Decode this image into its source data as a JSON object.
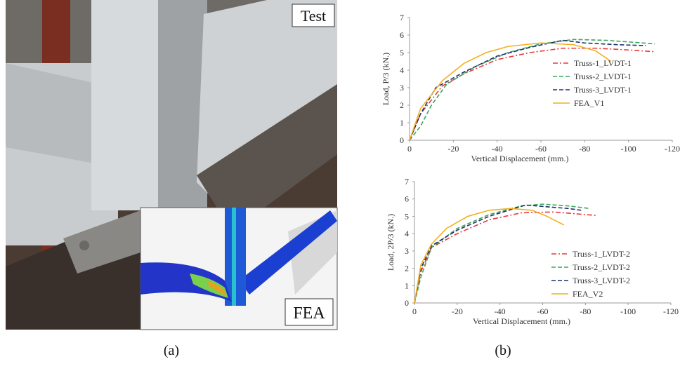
{
  "panel_a": {
    "labels": [
      "Test",
      "FEA"
    ],
    "caption": "(a)"
  },
  "panel_b": {
    "caption": "(b)"
  },
  "chart_data": [
    {
      "type": "line",
      "xlabel": "Vertical Displacement (mm.)",
      "ylabel": "Load, P/3 (kN.)",
      "xlim": [
        0,
        -120
      ],
      "xticks": [
        0,
        -20,
        -40,
        -60,
        -80,
        -100,
        -120
      ],
      "ylim": [
        0,
        7
      ],
      "yticks": [
        0,
        1,
        2,
        3,
        4,
        5,
        6,
        7
      ],
      "legend": "center right",
      "series": [
        {
          "name": "Truss-1_LVDT-1",
          "color": "#e8393a",
          "style": "dashdot",
          "x": [
            0,
            -5,
            -15,
            -25,
            -40,
            -55,
            -70,
            -85,
            -100,
            -112
          ],
          "values": [
            0,
            1.5,
            3.1,
            3.8,
            4.6,
            5.0,
            5.25,
            5.25,
            5.15,
            5.05
          ]
        },
        {
          "name": "Truss-2_LVDT-1",
          "color": "#3aa85a",
          "style": "dashed",
          "x": [
            0,
            -5,
            -10,
            -17,
            -30,
            -45,
            -60,
            -75,
            -90,
            -112
          ],
          "values": [
            0,
            0.8,
            2.0,
            3.2,
            4.2,
            5.0,
            5.5,
            5.75,
            5.7,
            5.5
          ]
        },
        {
          "name": "Truss-3_LVDT-1",
          "color": "#1f2f6e",
          "style": "dashed",
          "x": [
            0,
            -5,
            -12,
            -25,
            -40,
            -55,
            -70,
            -80,
            -95,
            -108
          ],
          "values": [
            0,
            1.5,
            3.0,
            3.9,
            4.8,
            5.3,
            5.7,
            5.55,
            5.45,
            5.4
          ]
        },
        {
          "name": "FEA_V1",
          "color": "#f2b01e",
          "style": "solid",
          "x": [
            0,
            -5,
            -15,
            -25,
            -35,
            -45,
            -60,
            -75,
            -85,
            -92
          ],
          "values": [
            0,
            1.8,
            3.4,
            4.4,
            5.0,
            5.35,
            5.55,
            5.45,
            5.1,
            4.5
          ]
        }
      ]
    },
    {
      "type": "line",
      "xlabel": "Vertical Displacement (mm.)",
      "ylabel": "Load, 2P/3 (kN.)",
      "xlim": [
        0,
        -120
      ],
      "xticks": [
        0,
        -20,
        -40,
        -60,
        -80,
        -100,
        -120
      ],
      "ylim": [
        0,
        7
      ],
      "yticks": [
        0,
        1,
        2,
        3,
        4,
        5,
        6,
        7
      ],
      "legend": "lower right",
      "series": [
        {
          "name": "Truss-1_LVDT-2",
          "color": "#e8393a",
          "style": "dashdot",
          "x": [
            0,
            -3,
            -8,
            -20,
            -35,
            -50,
            -65,
            -75,
            -85
          ],
          "values": [
            0,
            1.8,
            3.2,
            4.0,
            4.8,
            5.2,
            5.25,
            5.15,
            5.05
          ]
        },
        {
          "name": "Truss-2_LVDT-2",
          "color": "#3aa85a",
          "style": "dashed",
          "x": [
            0,
            -3,
            -8,
            -20,
            -35,
            -50,
            -60,
            -72,
            -82
          ],
          "values": [
            0,
            1.5,
            3.2,
            4.3,
            5.1,
            5.6,
            5.7,
            5.6,
            5.45
          ]
        },
        {
          "name": "Truss-3_LVDT-2",
          "color": "#1f2f6e",
          "style": "dashed",
          "x": [
            0,
            -3,
            -8,
            -20,
            -35,
            -52,
            -62,
            -72,
            -78
          ],
          "values": [
            0,
            2.0,
            3.3,
            4.2,
            5.0,
            5.65,
            5.55,
            5.45,
            5.35
          ]
        },
        {
          "name": "FEA_V2",
          "color": "#f2b01e",
          "style": "solid",
          "x": [
            0,
            -3,
            -8,
            -15,
            -25,
            -35,
            -45,
            -55,
            -62,
            -70
          ],
          "values": [
            0,
            2.2,
            3.4,
            4.3,
            5.0,
            5.35,
            5.45,
            5.35,
            5.0,
            4.5
          ]
        }
      ]
    }
  ]
}
